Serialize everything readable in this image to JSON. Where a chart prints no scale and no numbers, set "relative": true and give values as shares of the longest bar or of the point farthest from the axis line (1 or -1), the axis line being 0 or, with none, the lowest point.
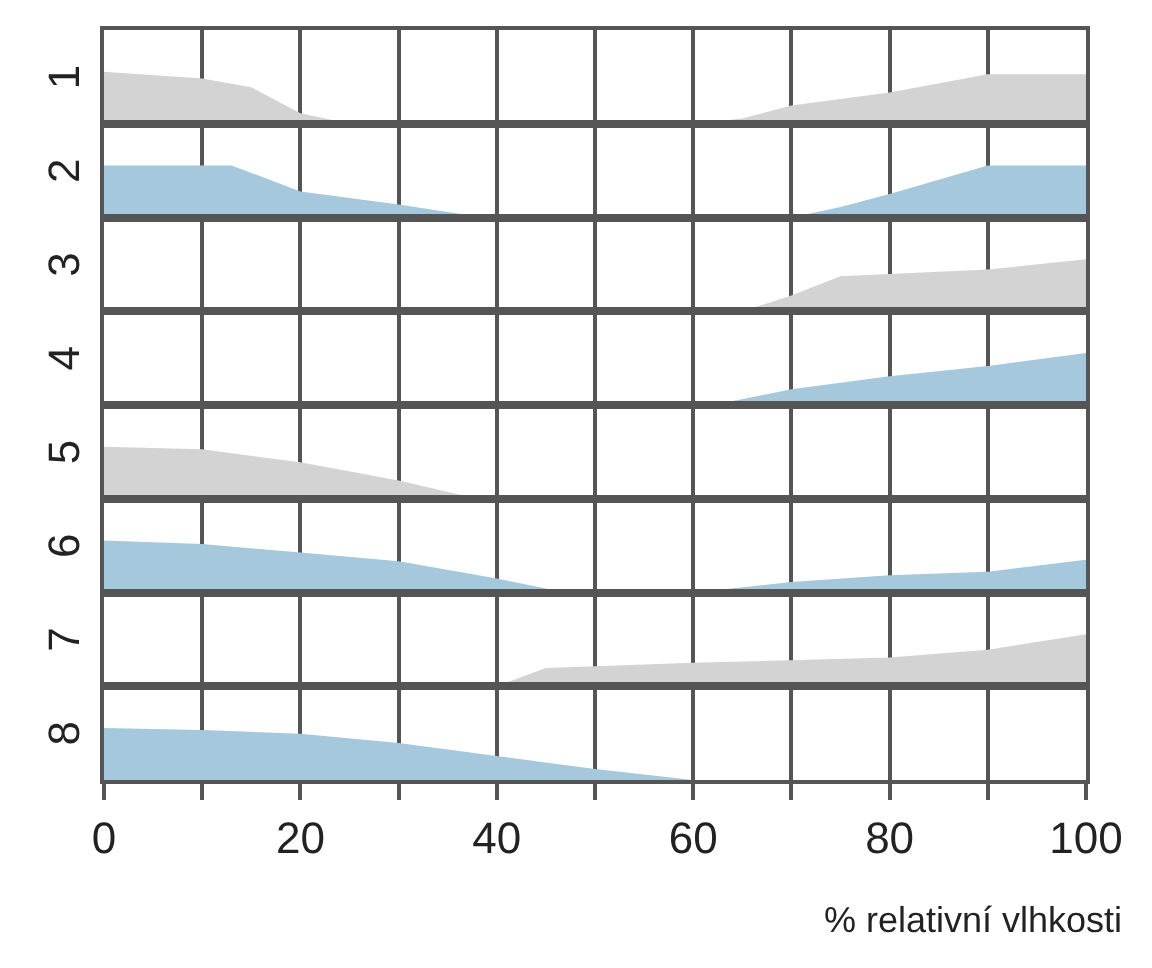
{
  "chart_data": [
    {
      "type": "area",
      "relative": true,
      "ylabel": "1",
      "xlim": [
        0,
        100
      ],
      "xticks": [
        0,
        {
          "value": 10,
          "label": null
        },
        20,
        {
          "value": 30,
          "label": null
        },
        40,
        {
          "value": 50,
          "label": null
        },
        60,
        {
          "value": 70,
          "label": null
        },
        80,
        {
          "value": 90,
          "label": null
        },
        100
      ],
      "grid": "x",
      "tick_labels": false,
      "x": [
        0,
        10,
        15,
        20,
        25,
        60,
        65,
        70,
        80,
        90,
        100
      ],
      "series": [
        {
          "color": "#d3d3d3",
          "values": [
            1,
            0.87,
            0.7,
            0.2,
            0,
            0,
            0.1,
            0.35,
            0.6,
            0.95,
            0.95
          ]
        }
      ]
    },
    {
      "type": "area",
      "relative": true,
      "ylabel": "2",
      "xlim": [
        0,
        100
      ],
      "xticks": [
        0,
        {
          "value": 10,
          "label": null
        },
        20,
        {
          "value": 30,
          "label": null
        },
        40,
        {
          "value": 50,
          "label": null
        },
        60,
        {
          "value": 70,
          "label": null
        },
        80,
        {
          "value": 90,
          "label": null
        },
        100
      ],
      "grid": "x",
      "tick_labels": false,
      "x": [
        0,
        13,
        20,
        30,
        37,
        40,
        70,
        75,
        80,
        90,
        100
      ],
      "series": [
        {
          "color": "#a5c8dc",
          "values": [
            1,
            1,
            0.5,
            0.25,
            0.05,
            0,
            0,
            0.2,
            0.45,
            1,
            1
          ]
        }
      ]
    },
    {
      "type": "area",
      "relative": true,
      "ylabel": "3",
      "xlim": [
        0,
        100
      ],
      "xticks": [
        0,
        {
          "value": 10,
          "label": null
        },
        20,
        {
          "value": 30,
          "label": null
        },
        40,
        {
          "value": 50,
          "label": null
        },
        60,
        {
          "value": 70,
          "label": null
        },
        80,
        {
          "value": 90,
          "label": null
        },
        100
      ],
      "grid": "x",
      "tick_labels": false,
      "x": [
        65,
        70,
        75,
        90,
        100
      ],
      "series": [
        {
          "color": "#d3d3d3",
          "values": [
            0,
            0.3,
            0.67,
            0.8,
            1
          ]
        }
      ]
    },
    {
      "type": "area",
      "relative": true,
      "ylabel": "4",
      "xlim": [
        0,
        100
      ],
      "xticks": [
        0,
        {
          "value": 10,
          "label": null
        },
        20,
        {
          "value": 30,
          "label": null
        },
        40,
        {
          "value": 50,
          "label": null
        },
        60,
        {
          "value": 70,
          "label": null
        },
        80,
        {
          "value": 90,
          "label": null
        },
        100
      ],
      "grid": "x",
      "tick_labels": false,
      "x": [
        62,
        70,
        80,
        90,
        100
      ],
      "series": [
        {
          "color": "#a5c8dc",
          "values": [
            0,
            0.3,
            0.55,
            0.75,
            1
          ]
        }
      ]
    },
    {
      "type": "area",
      "relative": true,
      "ylabel": "5",
      "xlim": [
        0,
        100
      ],
      "xticks": [
        0,
        {
          "value": 10,
          "label": null
        },
        20,
        {
          "value": 30,
          "label": null
        },
        40,
        {
          "value": 50,
          "label": null
        },
        60,
        {
          "value": 70,
          "label": null
        },
        80,
        {
          "value": 90,
          "label": null
        },
        100
      ],
      "grid": "x",
      "tick_labels": false,
      "x": [
        0,
        10,
        20,
        30,
        38
      ],
      "series": [
        {
          "color": "#d3d3d3",
          "values": [
            1,
            0.95,
            0.7,
            0.35,
            0
          ]
        }
      ]
    },
    {
      "type": "area",
      "relative": true,
      "ylabel": "6",
      "xlim": [
        0,
        100
      ],
      "xticks": [
        0,
        {
          "value": 10,
          "label": null
        },
        20,
        {
          "value": 30,
          "label": null
        },
        40,
        {
          "value": 50,
          "label": null
        },
        60,
        {
          "value": 70,
          "label": null
        },
        80,
        {
          "value": 90,
          "label": null
        },
        100
      ],
      "grid": "x",
      "tick_labels": false,
      "x": [
        0,
        10,
        20,
        30,
        40,
        47,
        60,
        70,
        80,
        90,
        100
      ],
      "series": [
        {
          "color": "#a5c8dc",
          "values": [
            1,
            0.93,
            0.77,
            0.6,
            0.27,
            0,
            0,
            0.2,
            0.33,
            0.4,
            0.63
          ]
        }
      ]
    },
    {
      "type": "area",
      "relative": true,
      "ylabel": "7",
      "xlim": [
        0,
        100
      ],
      "xticks": [
        0,
        {
          "value": 10,
          "label": null
        },
        20,
        {
          "value": 30,
          "label": null
        },
        40,
        {
          "value": 50,
          "label": null
        },
        60,
        {
          "value": 70,
          "label": null
        },
        80,
        {
          "value": 90,
          "label": null
        },
        100
      ],
      "grid": "x",
      "tick_labels": false,
      "x": [
        40,
        45,
        60,
        80,
        90,
        100
      ],
      "series": [
        {
          "color": "#d3d3d3",
          "values": [
            0,
            0.35,
            0.45,
            0.55,
            0.7,
            1
          ]
        }
      ]
    },
    {
      "type": "area",
      "relative": true,
      "ylabel": "8",
      "xlabel": "% relativní vlhkosti",
      "xlim": [
        0,
        100
      ],
      "xticks": [
        0,
        {
          "value": 10,
          "label": null
        },
        20,
        {
          "value": 30,
          "label": null
        },
        40,
        {
          "value": 50,
          "label": null
        },
        60,
        {
          "value": 70,
          "label": null
        },
        80,
        {
          "value": 90,
          "label": null
        },
        100
      ],
      "grid": "x",
      "tick_labels": "x",
      "x": [
        0,
        10,
        20,
        30,
        40,
        50,
        60
      ],
      "series": [
        {
          "color": "#a5c8dc",
          "values": [
            1,
            0.96,
            0.89,
            0.71,
            0.46,
            0.21,
            0
          ]
        }
      ]
    }
  ]
}
